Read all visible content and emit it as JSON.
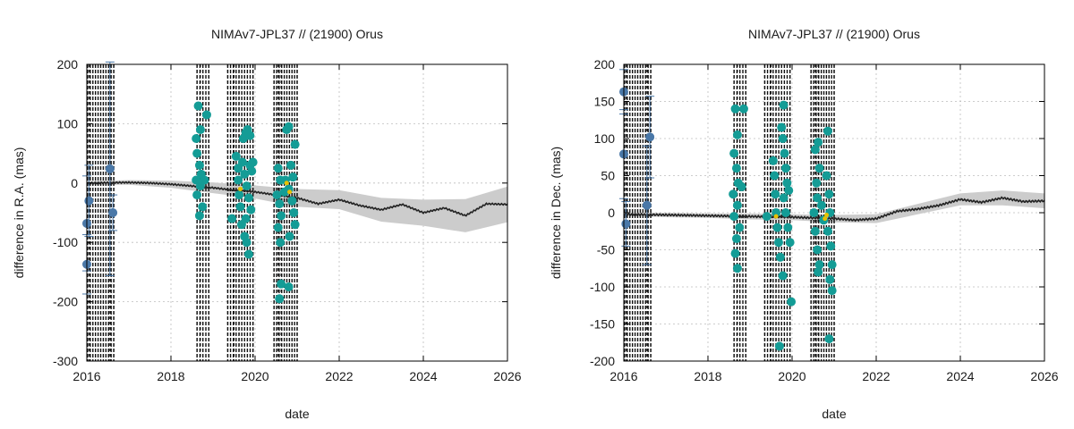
{
  "chart_data": [
    {
      "type": "scatter",
      "title": "NIMAv7-JPL37 // (21900) Orus",
      "xlabel": "date",
      "ylabel": "difference in R.A. (mas)",
      "xlim": [
        2016,
        2026
      ],
      "ylim": [
        -300,
        200
      ],
      "xticks": [
        2016,
        2018,
        2020,
        2022,
        2024,
        2026
      ],
      "yticks": [
        -300,
        -200,
        -100,
        0,
        100,
        200
      ],
      "grid": true,
      "colors": {
        "old_obs": "#4a78a8",
        "new_obs": "#149c96",
        "highlight": "#e8c000",
        "model": "#222222",
        "band": "#cccccc",
        "epochs": "#111111"
      },
      "obs_epochs": [
        [
          2016.02,
          2016.06,
          2016.55,
          2016.64
        ],
        [
          2018.62,
          2018.7,
          2018.9
        ],
        [
          2019.35,
          2019.5,
          2019.62,
          2019.95
        ],
        [
          2020.45,
          2020.55,
          2020.62,
          2021.0
        ]
      ],
      "series": [
        {
          "values": [
            [
              2016.0,
              -137
            ],
            [
              2016.0,
              -68
            ],
            [
              2016.05,
              -30
            ],
            [
              2016.55,
              24
            ],
            [
              2016.62,
              -50
            ]
          ],
          "errors": [
            50,
            80,
            60,
            180,
            30
          ]
        },
        {
          "values": [
            [
              2018.65,
              130
            ],
            [
              2018.7,
              90
            ],
            [
              2018.6,
              75
            ],
            [
              2018.62,
              50
            ],
            [
              2018.68,
              30
            ],
            [
              2018.72,
              15
            ],
            [
              2018.6,
              5
            ],
            [
              2018.7,
              -5
            ],
            [
              2018.62,
              -20
            ],
            [
              2018.75,
              -40
            ],
            [
              2018.68,
              -55
            ],
            [
              2018.85,
              115
            ],
            [
              2018.8,
              5
            ],
            [
              2019.45,
              -60
            ],
            [
              2019.55,
              45
            ],
            [
              2019.6,
              25
            ],
            [
              2019.6,
              5
            ],
            [
              2019.62,
              -20
            ],
            [
              2019.65,
              -40
            ],
            [
              2019.68,
              -70
            ],
            [
              2019.75,
              -90
            ],
            [
              2019.8,
              -100
            ],
            [
              2019.85,
              -120
            ],
            [
              2019.72,
              75
            ],
            [
              2019.78,
              85
            ],
            [
              2019.82,
              90
            ],
            [
              2019.88,
              80
            ],
            [
              2019.7,
              35
            ],
            [
              2019.75,
              15
            ],
            [
              2019.8,
              -5
            ],
            [
              2019.85,
              -25
            ],
            [
              2019.9,
              -45
            ],
            [
              2019.78,
              -60
            ],
            [
              2019.88,
              30
            ],
            [
              2019.92,
              20
            ],
            [
              2019.95,
              35
            ],
            [
              2020.55,
              25
            ],
            [
              2020.6,
              5
            ],
            [
              2020.52,
              -20
            ],
            [
              2020.58,
              -35
            ],
            [
              2020.62,
              -55
            ],
            [
              2020.55,
              -75
            ],
            [
              2020.6,
              -100
            ],
            [
              2020.62,
              -170
            ],
            [
              2020.58,
              -195
            ],
            [
              2020.8,
              -175
            ],
            [
              2020.75,
              90
            ],
            [
              2020.8,
              95
            ],
            [
              2020.95,
              65
            ],
            [
              2020.85,
              30
            ],
            [
              2020.9,
              10
            ],
            [
              2020.8,
              -10
            ],
            [
              2020.88,
              -30
            ],
            [
              2020.92,
              -50
            ],
            [
              2020.95,
              -70
            ],
            [
              2020.82,
              -90
            ],
            [
              2020.7,
              -15
            ],
            [
              2020.72,
              5
            ]
          ]
        },
        {
          "values": [
            [
              2019.65,
              -10
            ],
            [
              2020.75,
              0
            ],
            [
              2020.82,
              -15
            ]
          ]
        }
      ],
      "model_curve": [
        [
          2016.0,
          0
        ],
        [
          2017.0,
          1
        ],
        [
          2017.5,
          0
        ],
        [
          2018.0,
          -2
        ],
        [
          2018.5,
          -5
        ],
        [
          2019.0,
          -8
        ],
        [
          2019.5,
          -12
        ],
        [
          2020.0,
          -15
        ],
        [
          2020.5,
          -20
        ],
        [
          2021.0,
          -25
        ],
        [
          2021.5,
          -35
        ],
        [
          2022.0,
          -28
        ],
        [
          2022.5,
          -38
        ],
        [
          2023.0,
          -45
        ],
        [
          2023.5,
          -36
        ],
        [
          2024.0,
          -50
        ],
        [
          2024.5,
          -42
        ],
        [
          2025.0,
          -55
        ],
        [
          2025.5,
          -35
        ],
        [
          2026.0,
          -36
        ]
      ],
      "model_band": [
        [
          2016.0,
          3
        ],
        [
          2017.0,
          4
        ],
        [
          2018.0,
          6
        ],
        [
          2019.0,
          9
        ],
        [
          2020.0,
          11
        ],
        [
          2021.0,
          15
        ],
        [
          2022.0,
          16
        ],
        [
          2023.0,
          20
        ],
        [
          2024.0,
          22
        ],
        [
          2025.0,
          28
        ],
        [
          2026.0,
          30
        ]
      ]
    },
    {
      "type": "scatter",
      "title": "NIMAv7-JPL37 // (21900) Orus",
      "xlabel": "date",
      "ylabel": "difference in Dec. (mas)",
      "xlim": [
        2016,
        2026
      ],
      "ylim": [
        -200,
        200
      ],
      "xticks": [
        2016,
        2018,
        2020,
        2022,
        2024,
        2026
      ],
      "yticks": [
        -200,
        -150,
        -100,
        -50,
        0,
        50,
        100,
        150,
        200
      ],
      "grid": true,
      "colors": {
        "old_obs": "#4a78a8",
        "new_obs": "#149c96",
        "highlight": "#e8c000",
        "model": "#222222",
        "band": "#cccccc",
        "epochs": "#111111"
      },
      "obs_epochs": [
        [
          2016.02,
          2016.06,
          2016.55,
          2016.64
        ],
        [
          2018.62,
          2018.7,
          2018.9
        ],
        [
          2019.35,
          2019.5,
          2019.62,
          2019.95
        ],
        [
          2020.45,
          2020.55,
          2020.62,
          2021.0
        ]
      ],
      "series": [
        {
          "values": [
            [
              2016.0,
              163
            ],
            [
              2016.0,
              79
            ],
            [
              2016.05,
              -15
            ],
            [
              2016.55,
              10
            ],
            [
              2016.62,
              102
            ]
          ],
          "errors": [
            30,
            60,
            30,
            80,
            55
          ]
        },
        {
          "values": [
            [
              2018.65,
              140
            ],
            [
              2018.7,
              105
            ],
            [
              2018.62,
              80
            ],
            [
              2018.68,
              60
            ],
            [
              2018.72,
              40
            ],
            [
              2018.6,
              25
            ],
            [
              2018.7,
              10
            ],
            [
              2018.62,
              -5
            ],
            [
              2018.75,
              -20
            ],
            [
              2018.68,
              -35
            ],
            [
              2018.65,
              -55
            ],
            [
              2018.7,
              -75
            ],
            [
              2018.85,
              140
            ],
            [
              2018.8,
              35
            ],
            [
              2019.4,
              -5
            ],
            [
              2019.55,
              70
            ],
            [
              2019.58,
              50
            ],
            [
              2019.6,
              25
            ],
            [
              2019.62,
              0
            ],
            [
              2019.65,
              -20
            ],
            [
              2019.68,
              -40
            ],
            [
              2019.72,
              -60
            ],
            [
              2019.78,
              -85
            ],
            [
              2019.7,
              -180
            ],
            [
              2019.8,
              145
            ],
            [
              2019.75,
              115
            ],
            [
              2019.78,
              100
            ],
            [
              2019.82,
              80
            ],
            [
              2019.85,
              60
            ],
            [
              2019.88,
              40
            ],
            [
              2019.8,
              20
            ],
            [
              2019.85,
              0
            ],
            [
              2019.9,
              -20
            ],
            [
              2019.95,
              -40
            ],
            [
              2019.98,
              -120
            ],
            [
              2019.92,
              30
            ],
            [
              2020.55,
              85
            ],
            [
              2020.62,
              95
            ],
            [
              2020.65,
              60
            ],
            [
              2020.58,
              40
            ],
            [
              2020.6,
              20
            ],
            [
              2020.52,
              0
            ],
            [
              2020.55,
              -25
            ],
            [
              2020.6,
              -50
            ],
            [
              2020.65,
              -70
            ],
            [
              2020.62,
              -80
            ],
            [
              2020.85,
              110
            ],
            [
              2020.82,
              50
            ],
            [
              2020.88,
              25
            ],
            [
              2020.9,
              0
            ],
            [
              2020.85,
              -25
            ],
            [
              2020.92,
              -45
            ],
            [
              2020.95,
              -70
            ],
            [
              2020.9,
              -90
            ],
            [
              2020.95,
              -105
            ],
            [
              2020.88,
              -170
            ],
            [
              2020.7,
              10
            ],
            [
              2020.75,
              -10
            ]
          ]
        },
        {
          "values": [
            [
              2019.62,
              -5
            ],
            [
              2020.78,
              -8
            ],
            [
              2020.82,
              -3
            ]
          ]
        }
      ],
      "model_curve": [
        [
          2016.0,
          -2
        ],
        [
          2017.0,
          -3
        ],
        [
          2018.0,
          -4
        ],
        [
          2019.0,
          -5
        ],
        [
          2020.0,
          -6
        ],
        [
          2021.0,
          -8
        ],
        [
          2021.5,
          -10
        ],
        [
          2022.0,
          -8
        ],
        [
          2022.5,
          2
        ],
        [
          2023.0,
          5
        ],
        [
          2023.5,
          10
        ],
        [
          2024.0,
          18
        ],
        [
          2024.5,
          14
        ],
        [
          2025.0,
          20
        ],
        [
          2025.5,
          15
        ],
        [
          2026.0,
          16
        ]
      ],
      "model_band": [
        [
          2016.0,
          2
        ],
        [
          2017.0,
          3
        ],
        [
          2018.0,
          3
        ],
        [
          2019.0,
          4
        ],
        [
          2020.0,
          4
        ],
        [
          2021.0,
          5
        ],
        [
          2022.0,
          6
        ],
        [
          2023.0,
          7
        ],
        [
          2024.0,
          8
        ],
        [
          2025.0,
          10
        ],
        [
          2026.0,
          10
        ]
      ]
    }
  ]
}
